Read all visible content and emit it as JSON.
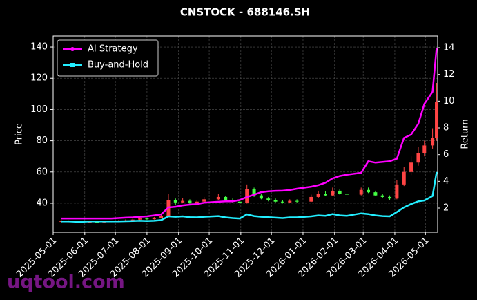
{
  "chart_data": {
    "type": "candlestick",
    "title": "CNSTOCK - 688146.SH",
    "ylabel": "Price",
    "y2label": "Return",
    "watermark": "uqtool.com",
    "legend": "upper left",
    "grid": true,
    "up_color": "#ff4444",
    "down_color": "#44ff44",
    "xlim": [
      "2025-05-01",
      "2026-05-13"
    ],
    "xticks": [
      "2025-05-01",
      "2025-06-01",
      "2025-07-01",
      "2025-08-01",
      "2025-09-01",
      "2025-10-01",
      "2025-11-01",
      "2025-12-01",
      "2026-01-01",
      "2026-02-01",
      "2026-03-01",
      "2026-04-01",
      "2026-05-01"
    ],
    "ylim": [
      21.4,
      147.1
    ],
    "yticks": [
      40,
      60,
      80,
      100,
      120,
      140
    ],
    "y2lim": [
      0.19,
      14.88
    ],
    "y2ticks": [
      2,
      4,
      6,
      8,
      10,
      12,
      14
    ],
    "x": [
      "2025-05-09",
      "2025-05-16",
      "2025-05-23",
      "2025-05-30",
      "2025-06-06",
      "2025-06-13",
      "2025-06-20",
      "2025-06-27",
      "2025-07-04",
      "2025-07-11",
      "2025-07-18",
      "2025-07-25",
      "2025-08-01",
      "2025-08-08",
      "2025-08-15",
      "2025-08-22",
      "2025-08-29",
      "2025-09-05",
      "2025-09-12",
      "2025-09-19",
      "2025-09-26",
      "2025-10-10",
      "2025-10-17",
      "2025-10-24",
      "2025-10-31",
      "2025-11-07",
      "2025-11-14",
      "2025-11-21",
      "2025-11-28",
      "2025-12-05",
      "2025-12-12",
      "2025-12-19",
      "2025-12-26",
      "2026-01-09",
      "2026-01-16",
      "2026-01-23",
      "2026-01-30",
      "2026-02-06",
      "2026-02-13",
      "2026-02-27",
      "2026-03-06",
      "2026-03-13",
      "2026-03-20",
      "2026-03-27",
      "2026-04-03",
      "2026-04-10",
      "2026-04-17",
      "2026-04-24",
      "2026-04-30",
      "2026-05-08",
      "2026-05-12"
    ],
    "open": [
      28.0,
      28.5,
      28.2,
      28.0,
      27.8,
      28.0,
      27.9,
      28.1,
      28.4,
      28.6,
      29.0,
      29.5,
      30.2,
      29.8,
      30.5,
      32.0,
      42.0,
      40.5,
      41.5,
      40.0,
      41.0,
      42.5,
      44.0,
      42.0,
      41.0,
      40.0,
      49.0,
      45.0,
      43.0,
      42.0,
      41.0,
      40.5,
      41.5,
      41.0,
      44.0,
      46.0,
      45.0,
      48.0,
      46.0,
      45.5,
      48.5,
      47.0,
      45.0,
      44.0,
      43.0,
      52.0,
      60.0,
      66.0,
      72.0,
      77.0,
      82.0
    ],
    "high": [
      29.2,
      29.0,
      28.7,
      28.4,
      28.5,
      28.4,
      28.5,
      28.9,
      29.1,
      29.6,
      30.1,
      30.9,
      30.6,
      31.2,
      33.5,
      46.0,
      43.0,
      43.5,
      42.5,
      42.0,
      44.0,
      46.0,
      44.5,
      43.0,
      42.0,
      52.0,
      50.0,
      46.0,
      44.0,
      43.0,
      42.0,
      42.5,
      42.5,
      45.5,
      48.0,
      47.5,
      50.0,
      49.0,
      47.0,
      50.0,
      50.0,
      48.0,
      46.0,
      45.0,
      55.0,
      63.0,
      70.0,
      76.0,
      80.0,
      88.0,
      117.0
    ],
    "low": [
      27.6,
      27.8,
      27.6,
      27.4,
      27.5,
      27.5,
      27.6,
      27.8,
      28.1,
      28.3,
      28.7,
      29.2,
      29.3,
      29.5,
      30.2,
      31.5,
      39.0,
      40.0,
      39.2,
      39.5,
      40.5,
      42.0,
      41.5,
      40.2,
      39.2,
      39.8,
      44.0,
      42.5,
      41.2,
      40.5,
      39.8,
      40.0,
      40.3,
      40.8,
      43.5,
      44.5,
      44.8,
      45.5,
      45.0,
      45.0,
      46.5,
      44.5,
      43.5,
      42.0,
      42.5,
      51.0,
      58.0,
      64.0,
      70.0,
      75.0,
      80.0
    ],
    "close": [
      28.5,
      28.2,
      28.0,
      27.8,
      28.0,
      27.9,
      28.1,
      28.4,
      28.6,
      29.0,
      29.5,
      30.2,
      29.8,
      30.5,
      32.0,
      42.0,
      40.5,
      41.5,
      40.0,
      41.0,
      42.5,
      44.0,
      42.0,
      41.0,
      40.0,
      49.0,
      45.0,
      43.0,
      42.0,
      41.0,
      40.5,
      41.5,
      41.0,
      44.0,
      46.0,
      45.0,
      48.0,
      46.0,
      45.5,
      48.5,
      47.0,
      45.0,
      44.0,
      43.0,
      52.0,
      60.0,
      66.0,
      72.0,
      77.0,
      82.0,
      105.0
    ],
    "series": [
      {
        "name": "AI Strategy",
        "color": "#ff00ff",
        "axis": "y2",
        "values": [
          1.22,
          1.22,
          1.22,
          1.22,
          1.22,
          1.22,
          1.22,
          1.22,
          1.25,
          1.28,
          1.3,
          1.35,
          1.38,
          1.45,
          1.53,
          2.05,
          2.1,
          2.2,
          2.26,
          2.3,
          2.4,
          2.47,
          2.5,
          2.5,
          2.6,
          2.83,
          3.0,
          3.19,
          3.25,
          3.29,
          3.3,
          3.35,
          3.45,
          3.6,
          3.71,
          3.9,
          4.22,
          4.4,
          4.5,
          4.64,
          5.5,
          5.4,
          5.45,
          5.5,
          5.7,
          7.25,
          7.5,
          8.3,
          9.8,
          10.7,
          14.0
        ]
      },
      {
        "name": "Buy-and-Hold",
        "color": "#22eeff",
        "axis": "y2",
        "values": [
          1.0,
          1.0,
          0.98,
          0.98,
          1.0,
          1.0,
          1.0,
          1.0,
          1.0,
          1.02,
          1.03,
          1.05,
          1.03,
          1.05,
          1.1,
          1.38,
          1.35,
          1.38,
          1.32,
          1.3,
          1.35,
          1.4,
          1.3,
          1.25,
          1.22,
          1.53,
          1.4,
          1.35,
          1.32,
          1.28,
          1.25,
          1.3,
          1.3,
          1.38,
          1.45,
          1.42,
          1.55,
          1.45,
          1.42,
          1.6,
          1.55,
          1.45,
          1.4,
          1.38,
          1.7,
          2.05,
          2.3,
          2.5,
          2.57,
          2.9,
          4.7
        ]
      }
    ]
  }
}
